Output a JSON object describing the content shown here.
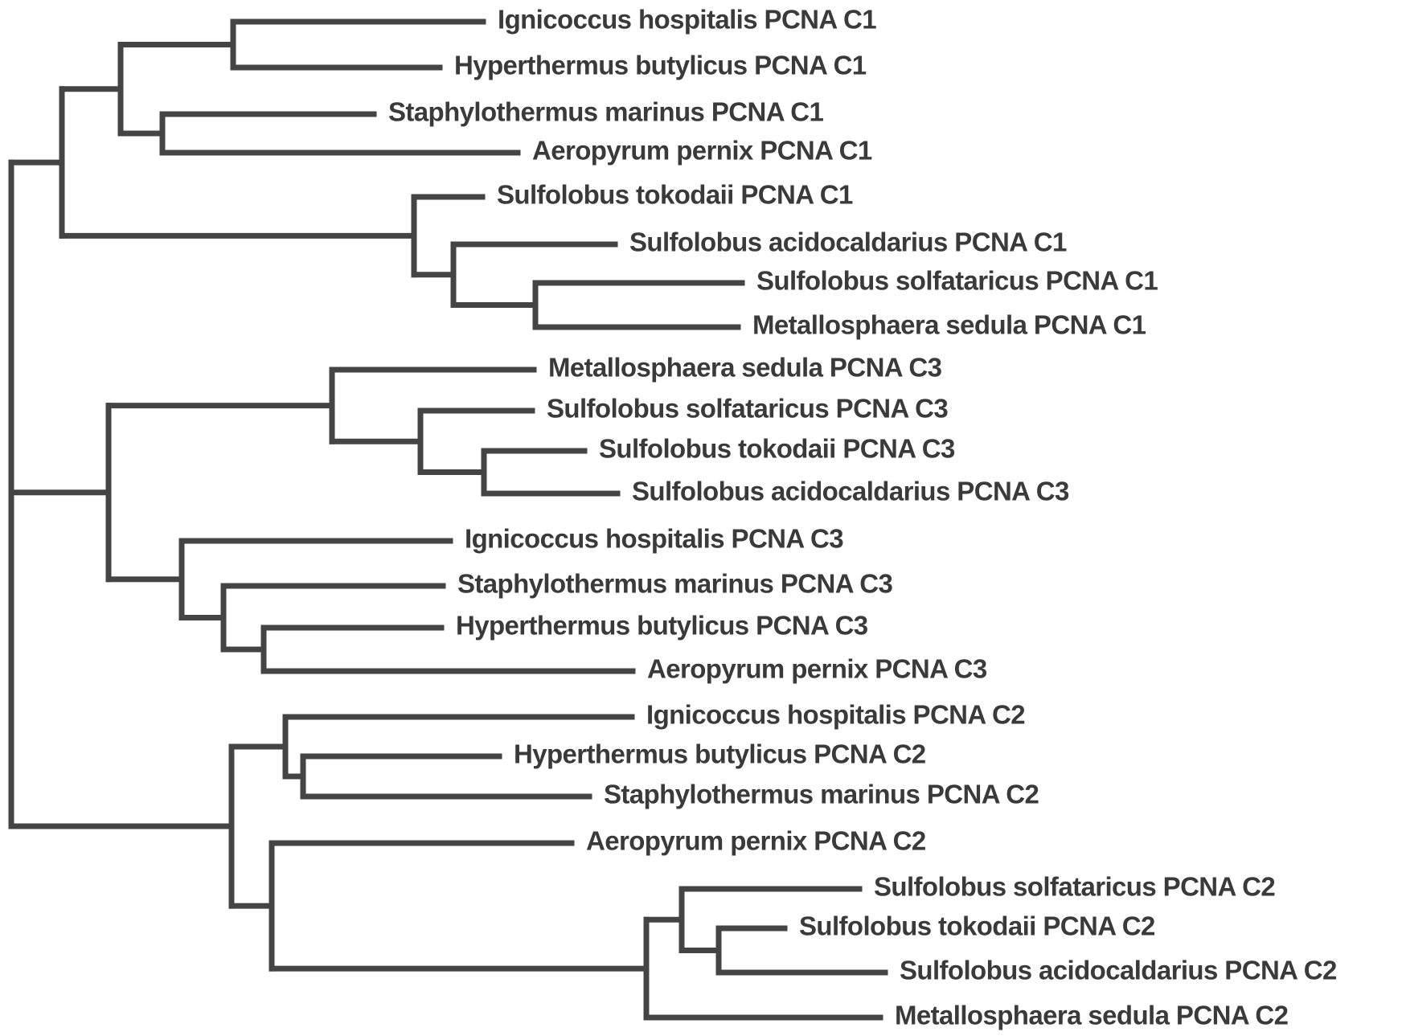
{
  "colors": {
    "branch": "#444444",
    "label": "#3a3a3a",
    "background": "#ffffff"
  },
  "tree": {
    "children": [
      {
        "children": [
          {
            "children": [
              {
                "children": [
                  {
                    "label": "Ignicoccus hospitalis PCNA C1"
                  },
                  {
                    "label": "Hyperthermus butylicus PCNA C1"
                  }
                ]
              },
              {
                "children": [
                  {
                    "label": "Staphylothermus marinus PCNA C1"
                  },
                  {
                    "label": "Aeropyrum pernix PCNA C1"
                  }
                ]
              }
            ]
          },
          {
            "children": [
              {
                "label": "Sulfolobus tokodaii PCNA C1"
              },
              {
                "children": [
                  {
                    "label": "Sulfolobus acidocaldarius PCNA C1"
                  },
                  {
                    "children": [
                      {
                        "label": "Sulfolobus solfataricus PCNA C1"
                      },
                      {
                        "label": "Metallosphaera sedula PCNA C1"
                      }
                    ]
                  }
                ]
              }
            ]
          }
        ]
      },
      {
        "children": [
          {
            "children": [
              {
                "label": "Metallosphaera sedula PCNA C3"
              },
              {
                "children": [
                  {
                    "label": "Sulfolobus solfataricus PCNA C3"
                  },
                  {
                    "children": [
                      {
                        "label": "Sulfolobus tokodaii PCNA C3"
                      },
                      {
                        "label": "Sulfolobus acidocaldarius PCNA C3"
                      }
                    ]
                  }
                ]
              }
            ]
          },
          {
            "children": [
              {
                "label": "Ignicoccus hospitalis PCNA C3"
              },
              {
                "children": [
                  {
                    "label": "Staphylothermus marinus PCNA C3"
                  },
                  {
                    "children": [
                      {
                        "label": "Hyperthermus butylicus PCNA C3"
                      },
                      {
                        "label": "Aeropyrum pernix PCNA C3"
                      }
                    ]
                  }
                ]
              }
            ]
          }
        ]
      },
      {
        "children": [
          {
            "children": [
              {
                "label": "Ignicoccus hospitalis PCNA C2"
              },
              {
                "children": [
                  {
                    "label": "Hyperthermus butylicus PCNA C2"
                  },
                  {
                    "label": "Staphylothermus marinus PCNA C2"
                  }
                ]
              }
            ]
          },
          {
            "children": [
              {
                "label": "Aeropyrum pernix PCNA C2"
              },
              {
                "children": [
                  {
                    "children": [
                      {
                        "label": "Sulfolobus solfataricus PCNA C2"
                      },
                      {
                        "children": [
                          {
                            "label": "Sulfolobus tokodaii PCNA C2"
                          },
                          {
                            "label": "Sulfolobus acidocaldarius PCNA C2"
                          }
                        ]
                      }
                    ]
                  },
                  {
                    "label": "Metallosphaera sedula PCNA C2"
                  }
                ]
              }
            ]
          }
        ]
      }
    ]
  }
}
